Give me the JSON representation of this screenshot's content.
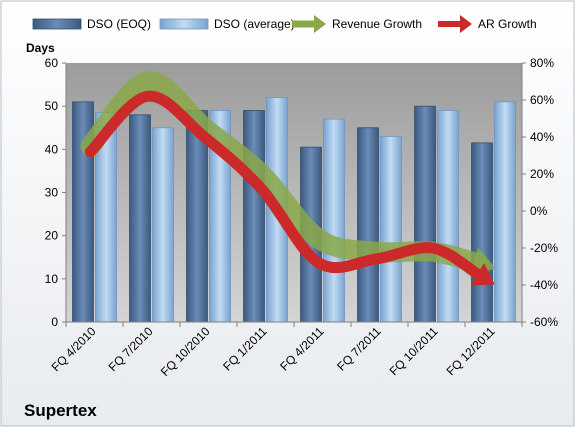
{
  "chart_data": {
    "type": "bar",
    "title": "Supertex",
    "ylabel": "Days",
    "categories": [
      "FQ 4/2010",
      "FQ 7/2010",
      "FQ 10/2010",
      "FQ 1/2011",
      "FQ 4/2011",
      "FQ 7/2011",
      "FQ 10/2011",
      "FQ 12/2011"
    ],
    "ylim": [
      0,
      60
    ],
    "yticks": [
      0,
      10,
      20,
      30,
      40,
      50,
      60
    ],
    "y2lim": [
      -60,
      80
    ],
    "y2ticks": [
      "-60%",
      "-40%",
      "-20%",
      "0%",
      "20%",
      "40%",
      "60%",
      "80%"
    ],
    "y2tick_values": [
      -60,
      -40,
      -20,
      0,
      20,
      40,
      60,
      80
    ],
    "legend_position": "top",
    "grid": false,
    "series": [
      {
        "name": "DSO (EOQ)",
        "kind": "bar",
        "color": "#4f6f98",
        "values": [
          51,
          48,
          49,
          49,
          40.5,
          45,
          50,
          41.5
        ]
      },
      {
        "name": "DSO (average)",
        "kind": "bar",
        "color": "#8fb4dc",
        "values": [
          48.5,
          45,
          49,
          52,
          47,
          43,
          49,
          51
        ]
      },
      {
        "name": "Revenue Growth",
        "kind": "line",
        "axis": "y2",
        "unit": "%",
        "color": "#8aa84a",
        "values": [
          35,
          70,
          45,
          20,
          -15,
          -22,
          -22,
          -30
        ]
      },
      {
        "name": "AR Growth",
        "kind": "line",
        "axis": "y2",
        "unit": "%",
        "color": "#cc2a2a",
        "values": [
          32,
          62,
          40,
          12,
          -28,
          -26,
          -20,
          -38
        ]
      }
    ]
  }
}
